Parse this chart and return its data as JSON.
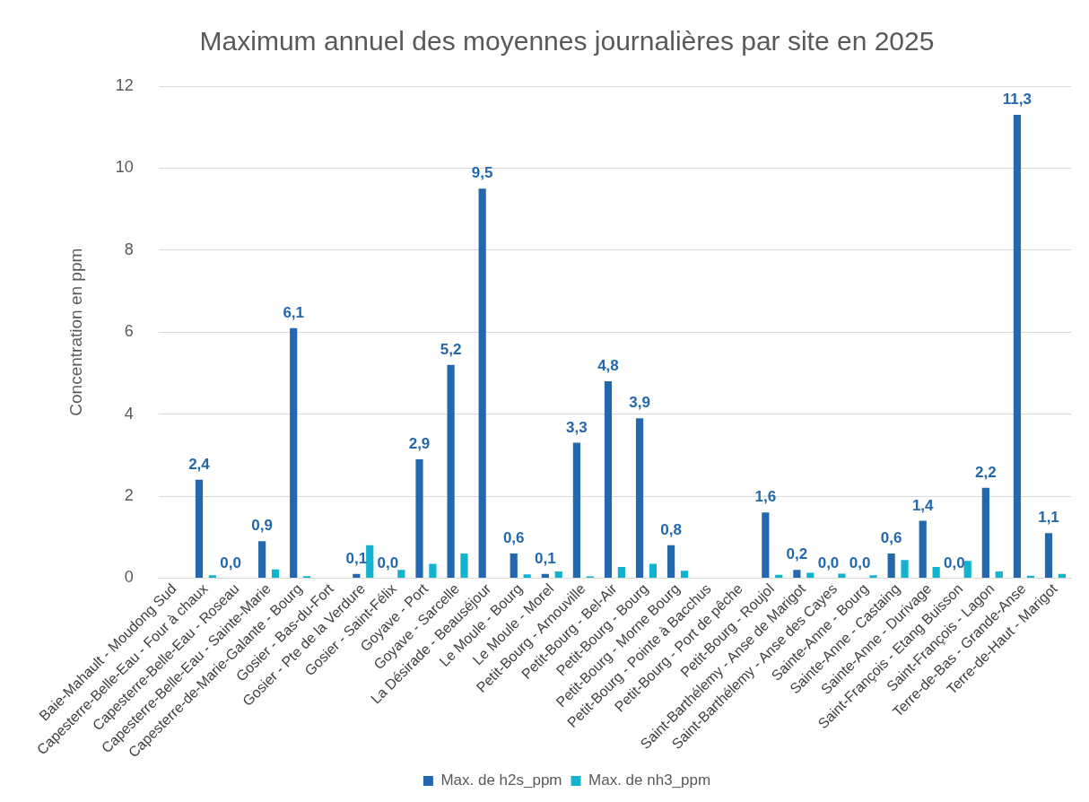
{
  "chart_data": {
    "type": "bar",
    "title": "Maximum annuel des moyennes journalières par site en 2025",
    "ylabel": "Concentration en ppm",
    "categories": [
      "Baie-Mahault - Moudong Sud",
      "Capesterre-Belle-Eau - Four à chaux",
      "Capesterre-Belle-Eau - Roseau",
      "Capesterre-Belle-Eau - Sainte-Marie",
      "Capesterre-de-Marie-Galante - Bourg",
      "Gosier - Bas-du-Fort",
      "Gosier - Pte de la Verdure",
      "Gosier - Saint-Félix",
      "Goyave - Port",
      "Goyave - Sarcelle",
      "La Désirade - Beauséjour",
      "Le Moule - Bourg",
      "Le Moule - Morel",
      "Petit-Bourg - Arnouville",
      "Petit-Bourg - Bel-Air",
      "Petit-Bourg - Bourg",
      "Petit-Bourg - Morne Bourg",
      "Petit-Bourg - Pointe à Bacchus",
      "Petit-Bourg - Port de pêche",
      "Petit-Bourg - Roujol",
      "Saint-Barthélemy - Anse de Marigot",
      "Saint-Barthélemy - Anse des Cayes",
      "Sainte-Anne - Bourg",
      "Sainte-Anne - Castaing",
      "Sainte-Anne - Durivage",
      "Saint-François - Etang Buisson",
      "Saint-François - Lagon",
      "Terre-de-Bas - Grande-Anse",
      "Terre-de-Haut - Marigot"
    ],
    "series": [
      {
        "name": "Max. de h2s_ppm",
        "color": "#2368ae",
        "values": [
          null,
          2.4,
          0,
          0.9,
          6.1,
          null,
          0.1,
          0,
          2.9,
          5.2,
          9.5,
          0.6,
          0.1,
          3.3,
          4.8,
          3.9,
          0.8,
          null,
          null,
          1.6,
          0.2,
          0,
          0,
          0.6,
          1.4,
          0,
          2.2,
          11.3,
          1.1
        ],
        "value_labels": [
          null,
          "2,4",
          "0,0",
          "0,9",
          "6,1",
          null,
          "0,1",
          "0,0",
          "2,9",
          "5,2",
          "9,5",
          "0,6",
          "0,1",
          "3,3",
          "4,8",
          "3,9",
          "0,8",
          null,
          null,
          "1,6",
          "0,2",
          "0,0",
          "0,0",
          "0,6",
          "1,4",
          "0,0",
          "2,2",
          "11,3",
          "1,1"
        ]
      },
      {
        "name": "Max. de nh3_ppm",
        "color": "#12b3cf",
        "values": [
          null,
          0.07,
          null,
          0.21,
          0.05,
          null,
          0.8,
          0.2,
          0.35,
          0.6,
          null,
          0.09,
          0.16,
          0.04,
          0.27,
          0.35,
          0.18,
          null,
          null,
          0.08,
          0.13,
          0.11,
          0.07,
          0.44,
          0.27,
          0.42,
          0.16,
          0.06,
          0.1
        ]
      }
    ],
    "ylim": [
      0,
      12
    ],
    "yticks": [
      0,
      2,
      4,
      6,
      8,
      10,
      12
    ],
    "grid": "y",
    "legend": "bottom"
  }
}
